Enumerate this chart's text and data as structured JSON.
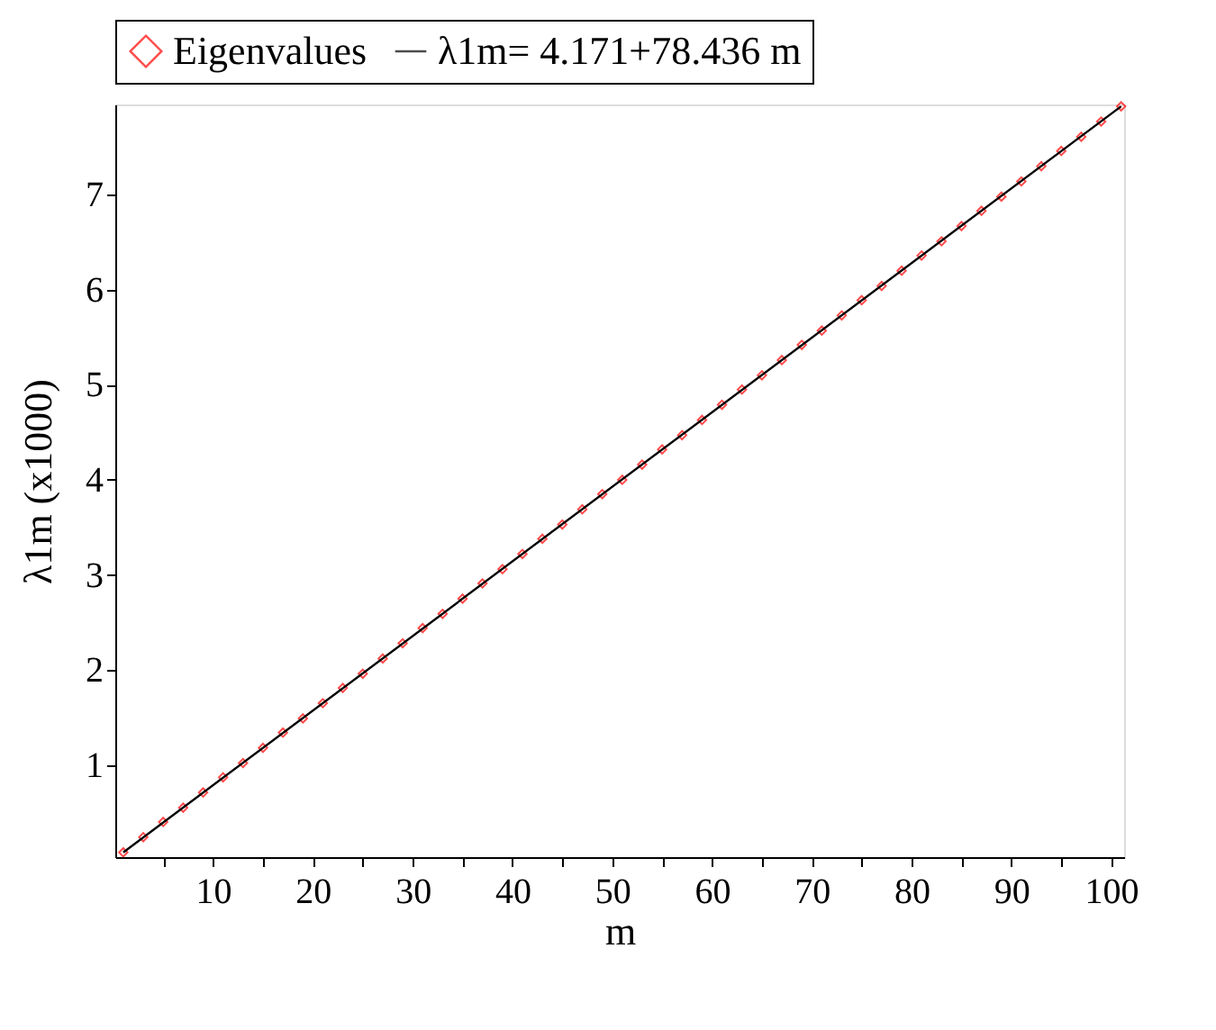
{
  "chart_data": {
    "type": "scatter",
    "xlabel": "m",
    "ylabel": "λ1m  (x1000)",
    "xlim": [
      0.2,
      101.3
    ],
    "ylim": [
      0.03,
      7.95
    ],
    "xticks": [
      {
        "value": 5,
        "label": null
      },
      10,
      {
        "value": 15,
        "label": null
      },
      20,
      {
        "value": 25,
        "label": null
      },
      30,
      {
        "value": 35,
        "label": null
      },
      40,
      {
        "value": 45,
        "label": null
      },
      50,
      {
        "value": 55,
        "label": null
      },
      60,
      {
        "value": 65,
        "label": null
      },
      70,
      {
        "value": 75,
        "label": null
      },
      80,
      {
        "value": 85,
        "label": null
      },
      90,
      {
        "value": 95,
        "label": null
      },
      100
    ],
    "yticks": [
      1,
      2,
      3,
      4,
      5,
      6,
      7
    ],
    "grid": false,
    "legend": "top",
    "series": [
      {
        "name": "Eigenvalues",
        "type": "scatter",
        "marker": "diamond",
        "color": "#ff0000",
        "x": [
          1,
          3,
          5,
          7,
          9,
          11,
          13,
          15,
          17,
          19,
          21,
          23,
          25,
          27,
          29,
          31,
          33,
          35,
          37,
          39,
          41,
          43,
          45,
          47,
          49,
          51,
          53,
          55,
          57,
          59,
          61,
          63,
          65,
          67,
          69,
          71,
          73,
          75,
          77,
          79,
          81,
          83,
          85,
          87,
          89,
          91,
          93,
          95,
          97,
          99,
          101
        ],
        "values": [
          0.08,
          0.24,
          0.4,
          0.55,
          0.71,
          0.87,
          1.02,
          1.18,
          1.34,
          1.49,
          1.65,
          1.81,
          1.96,
          2.12,
          2.28,
          2.44,
          2.59,
          2.75,
          2.91,
          3.06,
          3.22,
          3.38,
          3.53,
          3.69,
          3.85,
          4.0,
          4.16,
          4.32,
          4.47,
          4.63,
          4.79,
          4.95,
          5.1,
          5.26,
          5.42,
          5.57,
          5.73,
          5.89,
          6.04,
          6.2,
          6.36,
          6.51,
          6.67,
          6.83,
          6.98,
          7.14,
          7.3,
          7.46,
          7.61,
          7.77,
          7.93
        ]
      },
      {
        "name": "λ1m= 4.171+78.436 m",
        "type": "line",
        "marker": "none",
        "line_style": "solid",
        "color": "#000000",
        "x": [
          1,
          101
        ],
        "values": [
          0.08,
          7.93
        ]
      }
    ]
  }
}
